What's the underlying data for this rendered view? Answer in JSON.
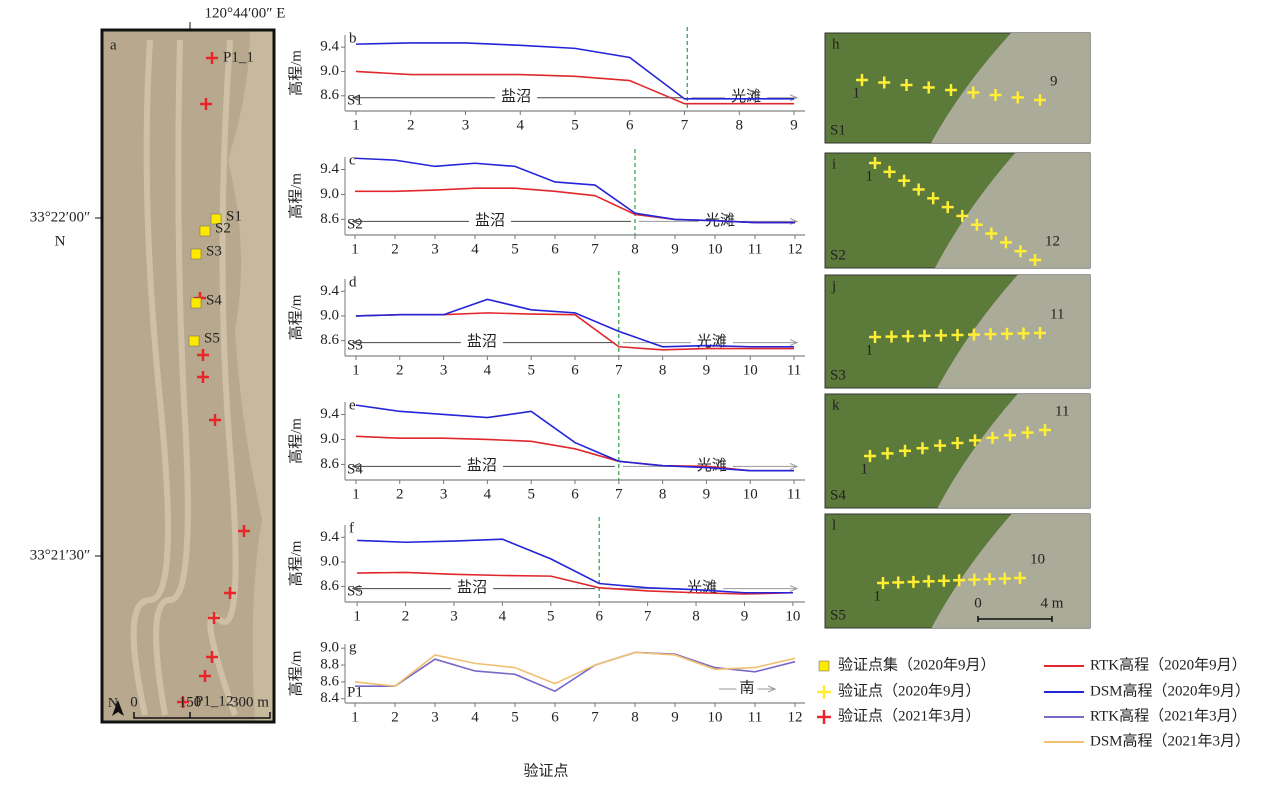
{
  "chart_data": [
    {
      "type": "line",
      "panel": "b",
      "station": "S1",
      "ylabel": "高程/m",
      "x": [
        1,
        2,
        3,
        4,
        5,
        6,
        7,
        8,
        9
      ],
      "xlim": [
        0.8,
        9.2
      ],
      "xticks": [
        1,
        2,
        3,
        4,
        5,
        6,
        7,
        8,
        9
      ],
      "ylim": [
        8.35,
        9.6
      ],
      "yticks": [
        8.6,
        {
          "value": 9,
          "label": "9.0"
        },
        9.4
      ],
      "boundary": 7.05,
      "annotations": [
        "盐沼",
        "光滩"
      ],
      "series": [
        {
          "name": "RTK高程（2020年9月）",
          "color": "#e0282c",
          "values": [
            9.0,
            8.95,
            8.95,
            8.95,
            8.92,
            8.85,
            8.47,
            8.47,
            8.47
          ]
        },
        {
          "name": "DSM高程（2020年9月）",
          "color": "#2424d8",
          "values": [
            9.45,
            9.47,
            9.47,
            9.43,
            9.38,
            9.23,
            8.55,
            8.55,
            8.55
          ]
        }
      ]
    },
    {
      "type": "line",
      "panel": "c",
      "station": "S2",
      "ylabel": "高程/m",
      "x": [
        1,
        2,
        3,
        4,
        5,
        6,
        7,
        8,
        9,
        10,
        11,
        12
      ],
      "xlim": [
        0.75,
        12.25
      ],
      "xticks": [
        1,
        2,
        3,
        4,
        5,
        6,
        7,
        8,
        9,
        10,
        11,
        12
      ],
      "ylim": [
        8.35,
        9.6
      ],
      "yticks": [
        8.6,
        {
          "value": 9,
          "label": "9.0"
        },
        9.4
      ],
      "boundary": 8,
      "annotations": [
        "盐沼",
        "光滩"
      ],
      "series": [
        {
          "name": "RTK高程（2020年9月）",
          "color": "#e0282c",
          "values": [
            9.05,
            9.05,
            9.07,
            9.1,
            9.1,
            9.05,
            8.98,
            8.68,
            8.6,
            8.58,
            8.55,
            8.55
          ]
        },
        {
          "name": "DSM高程（2020年9月）",
          "color": "#2424d8",
          "values": [
            9.58,
            9.55,
            9.45,
            9.5,
            9.45,
            9.2,
            9.15,
            8.7,
            8.6,
            8.58,
            8.55,
            8.55
          ]
        }
      ]
    },
    {
      "type": "line",
      "panel": "d",
      "station": "S3",
      "ylabel": "高程/m",
      "x": [
        1,
        2,
        3,
        4,
        5,
        6,
        7,
        8,
        9,
        10,
        11
      ],
      "xlim": [
        0.75,
        11.25
      ],
      "xticks": [
        1,
        2,
        3,
        4,
        5,
        6,
        7,
        8,
        9,
        10,
        11
      ],
      "ylim": [
        8.35,
        9.6
      ],
      "yticks": [
        8.6,
        {
          "value": 9,
          "label": "9.0"
        },
        9.4
      ],
      "boundary": 7,
      "annotations": [
        "盐沼",
        "光滩"
      ],
      "series": [
        {
          "name": "RTK高程（2020年9月）",
          "color": "#e0282c",
          "values": [
            9.0,
            9.02,
            9.02,
            9.05,
            9.03,
            9.02,
            8.5,
            8.45,
            8.47,
            8.47,
            8.47
          ]
        },
        {
          "name": "DSM高程（2020年9月）",
          "color": "#2424d8",
          "values": [
            9.0,
            9.02,
            9.02,
            9.27,
            9.1,
            9.05,
            8.75,
            8.5,
            8.52,
            8.5,
            8.5
          ]
        }
      ]
    },
    {
      "type": "line",
      "panel": "e",
      "station": "S4",
      "ylabel": "高程/m",
      "x": [
        1,
        2,
        3,
        4,
        5,
        6,
        7,
        8,
        9,
        10,
        11
      ],
      "xlim": [
        0.75,
        11.25
      ],
      "xticks": [
        1,
        2,
        3,
        4,
        5,
        6,
        7,
        8,
        9,
        10,
        11
      ],
      "ylim": [
        8.35,
        9.6
      ],
      "yticks": [
        8.6,
        {
          "value": 9,
          "label": "9.0"
        },
        9.4
      ],
      "boundary": 7,
      "annotations": [
        "盐沼",
        "光滩"
      ],
      "series": [
        {
          "name": "RTK高程（2020年9月）",
          "color": "#e0282c",
          "values": [
            9.05,
            9.02,
            9.02,
            9.0,
            8.97,
            8.85,
            8.65,
            8.58,
            8.57,
            8.5,
            8.5
          ]
        },
        {
          "name": "DSM高程（2020年9月）",
          "color": "#2424d8",
          "values": [
            9.55,
            9.45,
            9.4,
            9.35,
            9.45,
            8.95,
            8.65,
            8.58,
            8.55,
            8.5,
            8.5
          ]
        }
      ]
    },
    {
      "type": "line",
      "panel": "f",
      "station": "S5",
      "ylabel": "高程/m",
      "x": [
        1,
        2,
        3,
        4,
        5,
        6,
        7,
        8,
        9,
        10
      ],
      "xlim": [
        0.75,
        10.25
      ],
      "xticks": [
        1,
        2,
        3,
        4,
        5,
        6,
        7,
        8,
        9,
        10
      ],
      "ylim": [
        8.35,
        9.6
      ],
      "yticks": [
        8.6,
        {
          "value": 9,
          "label": "9.0"
        },
        9.4
      ],
      "boundary": 6,
      "annotations": [
        "盐沼",
        "光滩"
      ],
      "series": [
        {
          "name": "RTK高程（2020年9月）",
          "color": "#e0282c",
          "values": [
            8.82,
            8.83,
            8.8,
            8.78,
            8.77,
            8.58,
            8.53,
            8.5,
            8.48,
            8.5
          ]
        },
        {
          "name": "DSM高程（2020年9月）",
          "color": "#2424d8",
          "values": [
            9.35,
            9.32,
            9.34,
            9.37,
            9.05,
            8.65,
            8.58,
            8.55,
            8.5,
            8.5
          ]
        }
      ]
    },
    {
      "type": "line",
      "panel": "g",
      "station": "P1",
      "ylabel": "高程/m",
      "x": [
        1,
        2,
        3,
        4,
        5,
        6,
        7,
        8,
        9,
        10,
        11,
        12
      ],
      "xlim": [
        0.75,
        12.25
      ],
      "xticks": [
        1,
        2,
        3,
        4,
        5,
        6,
        7,
        8,
        9,
        10,
        11,
        12
      ],
      "ylim": [
        8.35,
        9.05
      ],
      "yticks": [
        8.4,
        8.6,
        8.8,
        {
          "value": 9,
          "label": "9.0"
        }
      ],
      "annotations": [
        "南"
      ],
      "series": [
        {
          "name": "RTK高程（2021年3月）",
          "color": "#7a68c8",
          "values": [
            8.55,
            8.55,
            8.87,
            8.73,
            8.69,
            8.49,
            8.8,
            8.95,
            8.93,
            8.77,
            8.72,
            8.84
          ]
        },
        {
          "name": "DSM高程（2021年3月）",
          "color": "#f0c070",
          "values": [
            8.6,
            8.55,
            8.92,
            8.82,
            8.77,
            8.58,
            8.8,
            8.95,
            8.92,
            8.75,
            8.77,
            8.88
          ]
        }
      ]
    }
  ],
  "xlabel": "验证点",
  "legend_points": [
    "验证点集（2020年9月）",
    "验证点（2020年9月）",
    "验证点（2021年3月）"
  ],
  "map": {
    "panel": "a",
    "lon_label": "120°44′00″ E",
    "lat_labels": [
      "33°22′00″",
      "33°21′30″"
    ],
    "lat_suffix": "N",
    "points": [
      "P1_1",
      "P1_12"
    ],
    "sets": [
      "S1",
      "S2",
      "S3",
      "S4",
      "S5"
    ],
    "north": "N",
    "scale": [
      "0",
      "150",
      "300 m"
    ]
  },
  "photos": [
    {
      "panel": "h",
      "station": "S1",
      "first": "1",
      "last": "9"
    },
    {
      "panel": "i",
      "station": "S2",
      "first": "1",
      "last": "12"
    },
    {
      "panel": "j",
      "station": "S3",
      "first": "1",
      "last": "11"
    },
    {
      "panel": "k",
      "station": "S4",
      "first": "1",
      "last": "11"
    },
    {
      "panel": "l",
      "station": "S5",
      "first": "1",
      "last": "10",
      "scale": [
        "0",
        "4 m"
      ]
    }
  ]
}
